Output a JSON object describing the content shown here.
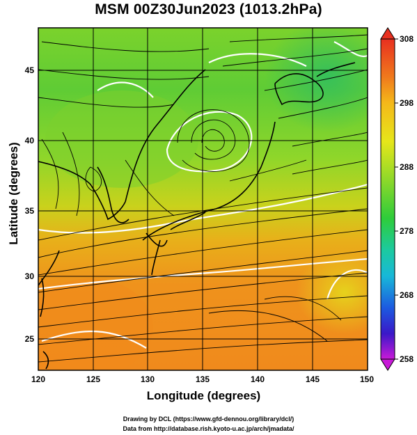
{
  "title": "MSM 00Z30Jun2023 (1013.2hPa)",
  "x_axis_label": "Longitude (degrees)",
  "y_axis_label": "Latitude  (degrees)",
  "credit_line1": "Drawing by DCL (https://www.gfd-dennou.org/library/dcl/)",
  "credit_line2": "Data from http://database.rish.kyoto-u.ac.jp/arch/jmadata/",
  "x_ticks": [
    "120",
    "125",
    "130",
    "135",
    "140",
    "145",
    "150"
  ],
  "y_ticks": [
    "25",
    "30",
    "35",
    "40",
    "45"
  ],
  "colorbar_ticks": [
    "308",
    "298",
    "288",
    "278",
    "268",
    "258"
  ],
  "colors": {
    "warm": "#f08a1c",
    "mid": "#9edc2c",
    "cool": "#3cc83c",
    "contour": "#ffffff",
    "coast": "#000000"
  }
}
